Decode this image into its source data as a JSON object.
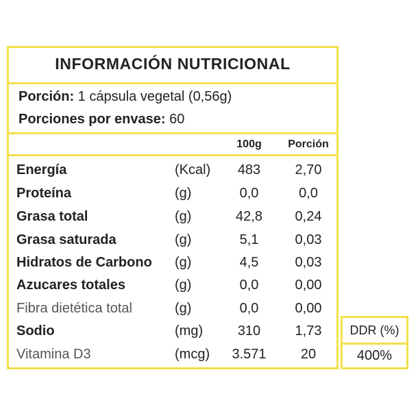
{
  "title": "INFORMACIÓN  NUTRICIONAL",
  "serving": {
    "portion_label": "Porción:",
    "portion_value": " 1 cápsula vegetal (0,56g)",
    "servings_label": "Porciones por envase:",
    "servings_value": " 60"
  },
  "columns": {
    "per100": "100g",
    "per_portion": "Porción"
  },
  "rows": [
    {
      "name": "Energía",
      "unit": "(Kcal)",
      "per100": "483",
      "portion": "2,70"
    },
    {
      "name": "Proteína",
      "unit": "(g)",
      "per100": "0,0",
      "portion": "0,0"
    },
    {
      "name": "Grasa total",
      "unit": "(g)",
      "per100": "42,8",
      "portion": "0,24"
    },
    {
      "name": "Grasa saturada",
      "unit": "(g)",
      "per100": "5,1",
      "portion": "0,03"
    },
    {
      "name": "Hidratos de Carbono",
      "unit": "(g)",
      "per100": "4,5",
      "portion": "0,03"
    },
    {
      "name": "Azucares totales",
      "unit": "(g)",
      "per100": "0,0",
      "portion": "0,00"
    },
    {
      "name": "Fibra dietética total",
      "unit": "(g)",
      "per100": "0,0",
      "portion": "0,00"
    },
    {
      "name": "Sodio",
      "unit": "(mg)",
      "per100": "310",
      "portion": "1,73"
    },
    {
      "name": "Vitamina D3",
      "unit": "(mcg)",
      "per100": "3.571",
      "portion": "20"
    }
  ],
  "ddr": {
    "header": "DDR (%)",
    "value": "400%"
  },
  "colors": {
    "border": "#f2e14c",
    "text": "#222222"
  }
}
